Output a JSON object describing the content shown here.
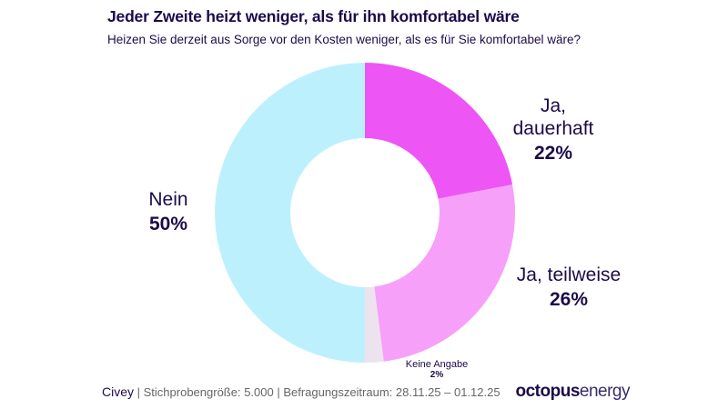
{
  "header": {
    "title": "Jeder Zweite heizt weniger, als für ihn komfortabel wäre",
    "subtitle": "Heizen Sie derzeit aus Sorge vor den Kosten weniger, als es für Sie komfortabel wäre?"
  },
  "chart_data": {
    "type": "pie",
    "donut": true,
    "title": "Jeder Zweite heizt weniger, als für ihn komfortabel wäre",
    "slices": [
      {
        "label": "Ja, dauerhaft",
        "value": 22,
        "display": "22%",
        "color": "#ee55f5"
      },
      {
        "label": "Ja, teilweise",
        "value": 26,
        "display": "26%",
        "color": "#f7a0f9"
      },
      {
        "label": "Keine Angabe",
        "value": 2,
        "display": "2%",
        "color": "#ede3ee"
      },
      {
        "label": "Nein",
        "value": 50,
        "display": "50%",
        "color": "#bdf0fd"
      }
    ]
  },
  "footer": {
    "source": "Civey",
    "details": "| Stichprobengröße: 5.000  |  Befragungszeitraum: 28.11.25 – 01.12.25",
    "logo_bold": "octopus",
    "logo_light": "energy"
  }
}
